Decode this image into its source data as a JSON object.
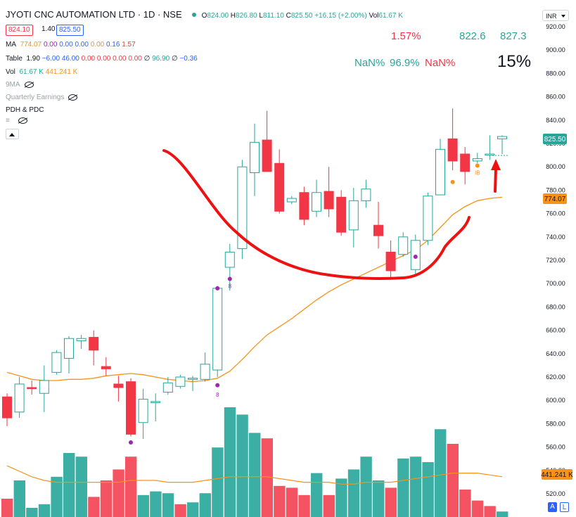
{
  "header": {
    "title": "JYOTI CNC AUTOMATION LTD · 1D · NSE",
    "ohlc": [
      {
        "label": "O",
        "value": "824.00"
      },
      {
        "label": "H",
        "value": "826.80"
      },
      {
        "label": "L",
        "value": "811.10"
      },
      {
        "label": "C",
        "value": "825.50"
      }
    ],
    "change": "+16.15 (+2.00%)",
    "vol_label": "Vol",
    "vol_value": "61.67 K"
  },
  "quote": {
    "bid": "824.10",
    "spread": "1.40",
    "ask": "825.50"
  },
  "indicators": {
    "ma": {
      "name": "MA",
      "values": [
        "774.07",
        "0.00",
        "0.00",
        "0.00",
        "0.00",
        "0.16",
        "1.57"
      ]
    },
    "table": {
      "name": "Table",
      "values": [
        "1.90",
        "−6.00",
        "46.00",
        "0.00",
        "0.00",
        "0.00",
        "0.00",
        "∅",
        "96.90",
        "∅",
        "−0.36"
      ]
    },
    "vol": {
      "name": "Vol",
      "values": [
        "61.67 K",
        "441.241 K"
      ]
    },
    "ma9": "9MA",
    "earnings": "Quarterly Earnings",
    "pdh": "PDH & PDC",
    "collapse": "≡"
  },
  "table_overlay": {
    "row1": [
      "1.57%",
      "822.6",
      "827.3"
    ],
    "row2": [
      "NaN%",
      "96.9%",
      "NaN%"
    ],
    "big_percent": "15%"
  },
  "currency_selector": "INR",
  "scale_buttons": [
    "A",
    "L"
  ],
  "colors": {
    "up": "#26a69a",
    "down": "#f23645",
    "ma": "#f7931a",
    "purple": "#9c27b0",
    "annotation": "#ee1111",
    "blue_badge": "#2962ff"
  },
  "chart_data": {
    "type": "candlestick",
    "y_axis": {
      "ticks": [
        920,
        900,
        880,
        860,
        840,
        820,
        800,
        780,
        760,
        740,
        720,
        700,
        680,
        660,
        640,
        620,
        600,
        580,
        560,
        540,
        520
      ],
      "tick_labels": [
        "920.00",
        "900.00",
        "880.00",
        "860.00",
        "840.00",
        "820.00",
        "800.00",
        "780.00",
        "760.00",
        "740.00",
        "720.00",
        "700.00",
        "680.00",
        "660.00",
        "640.00",
        "620.00",
        "600.00",
        "580.00",
        "560.00",
        "540.00",
        "520.00"
      ],
      "ylim": [
        514,
        926
      ]
    },
    "last_price_label": "825.50",
    "ma_label": "774.07",
    "volume_ma_label": "441.241 K",
    "candles": [
      {
        "o": 603,
        "h": 606,
        "l": 578,
        "c": 585
      },
      {
        "o": 590,
        "h": 620,
        "l": 585,
        "c": 614
      },
      {
        "o": 611,
        "h": 617,
        "l": 605,
        "c": 610
      },
      {
        "o": 606,
        "h": 630,
        "l": 590,
        "c": 617
      },
      {
        "o": 624,
        "h": 643,
        "l": 622,
        "c": 641
      },
      {
        "o": 636,
        "h": 655,
        "l": 623,
        "c": 653
      },
      {
        "o": 651,
        "h": 656,
        "l": 644,
        "c": 653
      },
      {
        "o": 654,
        "h": 660,
        "l": 630,
        "c": 643
      },
      {
        "o": 629,
        "h": 637,
        "l": 621,
        "c": 627
      },
      {
        "o": 614,
        "h": 621,
        "l": 599,
        "c": 611
      },
      {
        "o": 616,
        "h": 619,
        "l": 569,
        "c": 571
      },
      {
        "o": 581,
        "h": 610,
        "l": 567,
        "c": 601
      },
      {
        "o": 599,
        "h": 606,
        "l": 582,
        "c": 599
      },
      {
        "o": 607,
        "h": 620,
        "l": 605,
        "c": 615
      },
      {
        "o": 612,
        "h": 622,
        "l": 610,
        "c": 620
      },
      {
        "o": 618,
        "h": 621,
        "l": 608,
        "c": 619
      },
      {
        "o": 618,
        "h": 641,
        "l": 616,
        "c": 631
      },
      {
        "o": 626,
        "h": 698,
        "l": 620,
        "c": 696
      },
      {
        "o": 714,
        "h": 734,
        "l": 694,
        "c": 727
      },
      {
        "o": 730,
        "h": 806,
        "l": 721,
        "c": 800
      },
      {
        "o": 795,
        "h": 837,
        "l": 775,
        "c": 821
      },
      {
        "o": 823,
        "h": 848,
        "l": 796,
        "c": 796
      },
      {
        "o": 803,
        "h": 815,
        "l": 760,
        "c": 762
      },
      {
        "o": 770,
        "h": 775,
        "l": 768,
        "c": 773
      },
      {
        "o": 778,
        "h": 783,
        "l": 750,
        "c": 755
      },
      {
        "o": 762,
        "h": 789,
        "l": 757,
        "c": 778
      },
      {
        "o": 779,
        "h": 800,
        "l": 757,
        "c": 764
      },
      {
        "o": 774,
        "h": 780,
        "l": 741,
        "c": 744
      },
      {
        "o": 746,
        "h": 782,
        "l": 731,
        "c": 771
      },
      {
        "o": 771,
        "h": 789,
        "l": 765,
        "c": 781
      },
      {
        "o": 750,
        "h": 770,
        "l": 730,
        "c": 741
      },
      {
        "o": 727,
        "h": 737,
        "l": 705,
        "c": 711
      },
      {
        "o": 725,
        "h": 744,
        "l": 723,
        "c": 740
      },
      {
        "o": 712,
        "h": 742,
        "l": 708,
        "c": 737
      },
      {
        "o": 737,
        "h": 778,
        "l": 733,
        "c": 775
      },
      {
        "o": 776,
        "h": 824,
        "l": 776,
        "c": 815
      },
      {
        "o": 824,
        "h": 850,
        "l": 797,
        "c": 805
      },
      {
        "o": 811,
        "h": 817,
        "l": 785,
        "c": 796
      },
      {
        "o": 805,
        "h": 812,
        "l": 803,
        "c": 807
      },
      {
        "o": 810,
        "h": 827,
        "l": 806,
        "c": 811
      },
      {
        "o": 824,
        "h": 827,
        "l": 811,
        "c": 826
      }
    ],
    "volume": [
      {
        "v": 1.0,
        "dir": "down"
      },
      {
        "v": 2.0,
        "dir": "up"
      },
      {
        "v": 0.5,
        "dir": "up"
      },
      {
        "v": 0.7,
        "dir": "up"
      },
      {
        "v": 2.2,
        "dir": "up"
      },
      {
        "v": 3.5,
        "dir": "up"
      },
      {
        "v": 3.3,
        "dir": "up"
      },
      {
        "v": 1.1,
        "dir": "down"
      },
      {
        "v": 2.0,
        "dir": "down"
      },
      {
        "v": 2.6,
        "dir": "down"
      },
      {
        "v": 3.3,
        "dir": "down"
      },
      {
        "v": 1.2,
        "dir": "up"
      },
      {
        "v": 1.4,
        "dir": "up"
      },
      {
        "v": 1.3,
        "dir": "up"
      },
      {
        "v": 0.7,
        "dir": "down"
      },
      {
        "v": 0.8,
        "dir": "up"
      },
      {
        "v": 1.3,
        "dir": "up"
      },
      {
        "v": 3.8,
        "dir": "up"
      },
      {
        "v": 6.0,
        "dir": "up"
      },
      {
        "v": 5.6,
        "dir": "up"
      },
      {
        "v": 4.6,
        "dir": "up"
      },
      {
        "v": 4.3,
        "dir": "down"
      },
      {
        "v": 1.7,
        "dir": "down"
      },
      {
        "v": 1.6,
        "dir": "down"
      },
      {
        "v": 1.2,
        "dir": "down"
      },
      {
        "v": 2.4,
        "dir": "up"
      },
      {
        "v": 1.2,
        "dir": "down"
      },
      {
        "v": 2.1,
        "dir": "up"
      },
      {
        "v": 2.6,
        "dir": "up"
      },
      {
        "v": 3.3,
        "dir": "up"
      },
      {
        "v": 2.0,
        "dir": "up"
      },
      {
        "v": 1.6,
        "dir": "down"
      },
      {
        "v": 3.2,
        "dir": "up"
      },
      {
        "v": 3.3,
        "dir": "up"
      },
      {
        "v": 3.0,
        "dir": "up"
      },
      {
        "v": 4.8,
        "dir": "up"
      },
      {
        "v": 4.0,
        "dir": "down"
      },
      {
        "v": 1.5,
        "dir": "down"
      },
      {
        "v": 0.9,
        "dir": "down"
      },
      {
        "v": 0.6,
        "dir": "down"
      },
      {
        "v": 0.3,
        "dir": "up"
      }
    ],
    "ma_line": [
      624,
      621,
      618,
      617,
      617,
      618,
      618,
      619,
      621,
      622,
      623,
      622,
      620,
      618,
      617,
      616,
      617,
      619,
      625,
      635,
      646,
      656,
      663,
      670,
      678,
      686,
      693,
      699,
      704,
      709,
      714,
      719,
      724,
      729,
      737,
      748,
      759,
      766,
      771,
      773,
      774
    ],
    "volume_ma": [
      2.8,
      2.5,
      2.2,
      2.0,
      1.9,
      1.9,
      1.9,
      1.9,
      1.9,
      1.9,
      2.0,
      2.0,
      2.0,
      1.9,
      1.9,
      1.9,
      2.0,
      2.1,
      2.2,
      2.2,
      2.2,
      2.2,
      2.1,
      2.0,
      1.9,
      1.9,
      1.9,
      1.8,
      1.8,
      1.9,
      1.9,
      1.9,
      2.0,
      2.1,
      2.2,
      2.3,
      2.4,
      2.4,
      2.4,
      2.3,
      2.2
    ],
    "markers": [
      {
        "i": 10,
        "kind": "dot",
        "price": 564,
        "color": "#9c27b0"
      },
      {
        "i": 17,
        "kind": "dot",
        "price": 613,
        "color": "#9c27b0",
        "label": "8",
        "label_price": 605
      },
      {
        "i": 17,
        "kind": "dot",
        "price": 696,
        "color": "#9c27b0"
      },
      {
        "i": 18,
        "kind": "dot",
        "price": 704,
        "color": "#9c27b0",
        "label": "8",
        "label_price": 698
      },
      {
        "i": 33,
        "kind": "dot",
        "price": 723,
        "color": "#9c27b0"
      },
      {
        "i": 36,
        "kind": "dot",
        "price": 787,
        "color": "#f7931a"
      },
      {
        "i": 38,
        "kind": "dot",
        "price": 801,
        "color": "#f7931a",
        "label": "IB",
        "label_price": 795
      }
    ]
  }
}
